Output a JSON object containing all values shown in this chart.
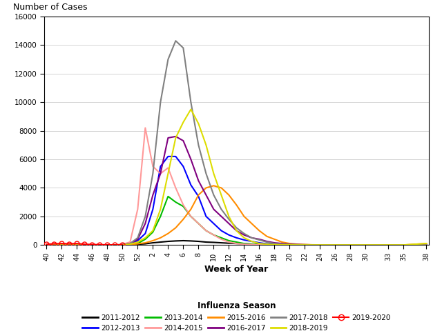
{
  "title_y": "Number of Cases",
  "xlabel": "Week of Year",
  "legend_title": "Influenza Season",
  "ylim": [
    0,
    16000
  ],
  "yticks": [
    0,
    2000,
    4000,
    6000,
    8000,
    10000,
    12000,
    14000,
    16000
  ],
  "x_tick_labels": [
    40,
    42,
    44,
    46,
    48,
    50,
    52,
    2,
    4,
    6,
    8,
    10,
    12,
    14,
    16,
    18,
    20,
    22,
    24,
    26,
    28,
    30,
    33,
    35,
    38
  ],
  "seasons": {
    "2011-2012": {
      "color": "#000000",
      "lw": 1.5,
      "marker": null,
      "data": [
        [
          40,
          0
        ],
        [
          41,
          0
        ],
        [
          42,
          0
        ],
        [
          43,
          0
        ],
        [
          44,
          0
        ],
        [
          45,
          0
        ],
        [
          46,
          0
        ],
        [
          47,
          0
        ],
        [
          48,
          0
        ],
        [
          49,
          0
        ],
        [
          50,
          10
        ],
        [
          51,
          20
        ],
        [
          52,
          50
        ],
        [
          1,
          80
        ],
        [
          2,
          150
        ],
        [
          3,
          200
        ],
        [
          4,
          250
        ],
        [
          5,
          280
        ],
        [
          6,
          300
        ],
        [
          7,
          280
        ],
        [
          8,
          250
        ],
        [
          9,
          200
        ],
        [
          10,
          180
        ],
        [
          11,
          150
        ],
        [
          12,
          120
        ],
        [
          13,
          100
        ],
        [
          14,
          80
        ],
        [
          15,
          60
        ],
        [
          16,
          40
        ],
        [
          17,
          30
        ],
        [
          18,
          20
        ],
        [
          19,
          15
        ],
        [
          20,
          10
        ],
        [
          21,
          5
        ],
        [
          22,
          3
        ],
        [
          23,
          2
        ],
        [
          24,
          1
        ],
        [
          25,
          0
        ],
        [
          26,
          0
        ],
        [
          27,
          0
        ],
        [
          28,
          0
        ],
        [
          29,
          0
        ],
        [
          30,
          0
        ],
        [
          33,
          0
        ],
        [
          35,
          0
        ],
        [
          38,
          0
        ]
      ]
    },
    "2012-2013": {
      "color": "#0000FF",
      "lw": 1.5,
      "marker": null,
      "data": [
        [
          40,
          0
        ],
        [
          41,
          0
        ],
        [
          42,
          0
        ],
        [
          43,
          0
        ],
        [
          44,
          0
        ],
        [
          45,
          0
        ],
        [
          46,
          0
        ],
        [
          47,
          0
        ],
        [
          48,
          0
        ],
        [
          49,
          0
        ],
        [
          50,
          10
        ],
        [
          51,
          50
        ],
        [
          52,
          300
        ],
        [
          1,
          800
        ],
        [
          2,
          2500
        ],
        [
          3,
          5500
        ],
        [
          4,
          6200
        ],
        [
          5,
          6200
        ],
        [
          6,
          5500
        ],
        [
          7,
          4200
        ],
        [
          8,
          3400
        ],
        [
          9,
          2000
        ],
        [
          10,
          1500
        ],
        [
          11,
          1000
        ],
        [
          12,
          700
        ],
        [
          13,
          500
        ],
        [
          14,
          350
        ],
        [
          15,
          250
        ],
        [
          16,
          150
        ],
        [
          17,
          80
        ],
        [
          18,
          50
        ],
        [
          19,
          30
        ],
        [
          20,
          20
        ],
        [
          21,
          10
        ],
        [
          22,
          5
        ],
        [
          23,
          0
        ],
        [
          24,
          0
        ],
        [
          25,
          0
        ],
        [
          26,
          0
        ],
        [
          27,
          0
        ],
        [
          28,
          0
        ],
        [
          29,
          0
        ],
        [
          30,
          0
        ],
        [
          33,
          0
        ],
        [
          35,
          0
        ],
        [
          38,
          0
        ]
      ]
    },
    "2013-2014": {
      "color": "#00BB00",
      "lw": 1.5,
      "marker": null,
      "data": [
        [
          40,
          0
        ],
        [
          41,
          0
        ],
        [
          42,
          0
        ],
        [
          43,
          0
        ],
        [
          44,
          0
        ],
        [
          45,
          0
        ],
        [
          46,
          0
        ],
        [
          47,
          0
        ],
        [
          48,
          0
        ],
        [
          49,
          0
        ],
        [
          50,
          5
        ],
        [
          51,
          20
        ],
        [
          52,
          100
        ],
        [
          1,
          400
        ],
        [
          2,
          900
        ],
        [
          3,
          2000
        ],
        [
          4,
          3400
        ],
        [
          5,
          3000
        ],
        [
          6,
          2700
        ],
        [
          7,
          2000
        ],
        [
          8,
          1500
        ],
        [
          9,
          1000
        ],
        [
          10,
          700
        ],
        [
          11,
          500
        ],
        [
          12,
          300
        ],
        [
          13,
          200
        ],
        [
          14,
          100
        ],
        [
          15,
          60
        ],
        [
          16,
          30
        ],
        [
          17,
          15
        ],
        [
          18,
          10
        ],
        [
          19,
          5
        ],
        [
          20,
          0
        ],
        [
          21,
          0
        ],
        [
          22,
          0
        ],
        [
          23,
          0
        ],
        [
          24,
          0
        ],
        [
          25,
          0
        ],
        [
          26,
          0
        ],
        [
          27,
          0
        ],
        [
          28,
          0
        ],
        [
          29,
          0
        ],
        [
          30,
          0
        ],
        [
          33,
          0
        ],
        [
          35,
          0
        ],
        [
          38,
          0
        ]
      ]
    },
    "2014-2015": {
      "color": "#FF9999",
      "lw": 1.5,
      "marker": null,
      "data": [
        [
          40,
          0
        ],
        [
          41,
          0
        ],
        [
          42,
          0
        ],
        [
          43,
          0
        ],
        [
          44,
          0
        ],
        [
          45,
          0
        ],
        [
          46,
          0
        ],
        [
          47,
          0
        ],
        [
          48,
          0
        ],
        [
          49,
          0
        ],
        [
          50,
          50
        ],
        [
          51,
          200
        ],
        [
          52,
          2500
        ],
        [
          1,
          8200
        ],
        [
          2,
          5500
        ],
        [
          3,
          5000
        ],
        [
          4,
          5400
        ],
        [
          5,
          4000
        ],
        [
          6,
          2800
        ],
        [
          7,
          2000
        ],
        [
          8,
          1500
        ],
        [
          9,
          1000
        ],
        [
          10,
          700
        ],
        [
          11,
          400
        ],
        [
          12,
          200
        ],
        [
          13,
          100
        ],
        [
          14,
          50
        ],
        [
          15,
          30
        ],
        [
          16,
          10
        ],
        [
          17,
          5
        ],
        [
          18,
          0
        ],
        [
          19,
          0
        ],
        [
          20,
          0
        ],
        [
          21,
          0
        ],
        [
          22,
          0
        ],
        [
          23,
          0
        ],
        [
          24,
          0
        ],
        [
          25,
          0
        ],
        [
          26,
          0
        ],
        [
          27,
          0
        ],
        [
          28,
          0
        ],
        [
          29,
          0
        ],
        [
          30,
          0
        ],
        [
          33,
          0
        ],
        [
          35,
          0
        ],
        [
          38,
          0
        ]
      ]
    },
    "2015-2016": {
      "color": "#FF8C00",
      "lw": 1.5,
      "marker": null,
      "data": [
        [
          40,
          0
        ],
        [
          41,
          0
        ],
        [
          42,
          0
        ],
        [
          43,
          0
        ],
        [
          44,
          0
        ],
        [
          45,
          0
        ],
        [
          46,
          0
        ],
        [
          47,
          0
        ],
        [
          48,
          0
        ],
        [
          49,
          0
        ],
        [
          50,
          10
        ],
        [
          51,
          30
        ],
        [
          52,
          80
        ],
        [
          1,
          150
        ],
        [
          2,
          300
        ],
        [
          3,
          500
        ],
        [
          4,
          800
        ],
        [
          5,
          1200
        ],
        [
          6,
          1800
        ],
        [
          7,
          2500
        ],
        [
          8,
          3500
        ],
        [
          9,
          4000
        ],
        [
          10,
          4150
        ],
        [
          11,
          4000
        ],
        [
          12,
          3500
        ],
        [
          13,
          2800
        ],
        [
          14,
          2000
        ],
        [
          15,
          1500
        ],
        [
          16,
          1000
        ],
        [
          17,
          600
        ],
        [
          18,
          400
        ],
        [
          19,
          200
        ],
        [
          20,
          100
        ],
        [
          21,
          50
        ],
        [
          22,
          30
        ],
        [
          23,
          10
        ],
        [
          24,
          5
        ],
        [
          25,
          0
        ],
        [
          26,
          0
        ],
        [
          27,
          0
        ],
        [
          28,
          0
        ],
        [
          29,
          0
        ],
        [
          30,
          0
        ],
        [
          33,
          0
        ],
        [
          35,
          0
        ],
        [
          38,
          100
        ]
      ]
    },
    "2016-2017": {
      "color": "#800080",
      "lw": 1.5,
      "marker": null,
      "data": [
        [
          40,
          0
        ],
        [
          41,
          0
        ],
        [
          42,
          0
        ],
        [
          43,
          0
        ],
        [
          44,
          0
        ],
        [
          45,
          0
        ],
        [
          46,
          0
        ],
        [
          47,
          0
        ],
        [
          48,
          0
        ],
        [
          49,
          0
        ],
        [
          50,
          20
        ],
        [
          51,
          100
        ],
        [
          52,
          400
        ],
        [
          1,
          1500
        ],
        [
          2,
          3500
        ],
        [
          3,
          5000
        ],
        [
          4,
          7500
        ],
        [
          5,
          7600
        ],
        [
          6,
          7300
        ],
        [
          7,
          6000
        ],
        [
          8,
          4500
        ],
        [
          9,
          3500
        ],
        [
          10,
          2500
        ],
        [
          11,
          2000
        ],
        [
          12,
          1500
        ],
        [
          13,
          1000
        ],
        [
          14,
          700
        ],
        [
          15,
          500
        ],
        [
          16,
          400
        ],
        [
          17,
          250
        ],
        [
          18,
          150
        ],
        [
          19,
          100
        ],
        [
          20,
          50
        ],
        [
          21,
          30
        ],
        [
          22,
          15
        ],
        [
          23,
          5
        ],
        [
          24,
          0
        ],
        [
          25,
          0
        ],
        [
          26,
          0
        ],
        [
          27,
          0
        ],
        [
          28,
          0
        ],
        [
          29,
          0
        ],
        [
          30,
          0
        ],
        [
          33,
          0
        ],
        [
          35,
          0
        ],
        [
          38,
          0
        ]
      ]
    },
    "2017-2018": {
      "color": "#808080",
      "lw": 1.5,
      "marker": null,
      "data": [
        [
          40,
          0
        ],
        [
          41,
          0
        ],
        [
          42,
          0
        ],
        [
          43,
          0
        ],
        [
          44,
          0
        ],
        [
          45,
          0
        ],
        [
          46,
          0
        ],
        [
          47,
          0
        ],
        [
          48,
          0
        ],
        [
          49,
          0
        ],
        [
          50,
          20
        ],
        [
          51,
          100
        ],
        [
          52,
          500
        ],
        [
          1,
          2000
        ],
        [
          2,
          5000
        ],
        [
          3,
          10000
        ],
        [
          4,
          13000
        ],
        [
          5,
          14300
        ],
        [
          6,
          13800
        ],
        [
          7,
          10000
        ],
        [
          8,
          7000
        ],
        [
          9,
          5000
        ],
        [
          10,
          3500
        ],
        [
          11,
          2500
        ],
        [
          12,
          1800
        ],
        [
          13,
          1200
        ],
        [
          14,
          800
        ],
        [
          15,
          500
        ],
        [
          16,
          350
        ],
        [
          17,
          200
        ],
        [
          18,
          100
        ],
        [
          19,
          50
        ],
        [
          20,
          30
        ],
        [
          21,
          15
        ],
        [
          22,
          5
        ],
        [
          23,
          0
        ],
        [
          24,
          0
        ],
        [
          25,
          0
        ],
        [
          26,
          0
        ],
        [
          27,
          0
        ],
        [
          28,
          0
        ],
        [
          29,
          0
        ],
        [
          30,
          0
        ],
        [
          33,
          0
        ],
        [
          35,
          0
        ],
        [
          38,
          0
        ]
      ]
    },
    "2018-2019": {
      "color": "#DDDD00",
      "lw": 1.5,
      "marker": null,
      "data": [
        [
          40,
          0
        ],
        [
          41,
          0
        ],
        [
          42,
          0
        ],
        [
          43,
          0
        ],
        [
          44,
          0
        ],
        [
          45,
          0
        ],
        [
          46,
          0
        ],
        [
          47,
          0
        ],
        [
          48,
          0
        ],
        [
          49,
          0
        ],
        [
          50,
          10
        ],
        [
          51,
          50
        ],
        [
          52,
          200
        ],
        [
          1,
          500
        ],
        [
          2,
          1000
        ],
        [
          3,
          2500
        ],
        [
          4,
          5000
        ],
        [
          5,
          7500
        ],
        [
          6,
          8600
        ],
        [
          7,
          9500
        ],
        [
          8,
          8500
        ],
        [
          9,
          7000
        ],
        [
          10,
          5000
        ],
        [
          11,
          3500
        ],
        [
          12,
          2000
        ],
        [
          13,
          1000
        ],
        [
          14,
          500
        ],
        [
          15,
          250
        ],
        [
          16,
          100
        ],
        [
          17,
          50
        ],
        [
          18,
          20
        ],
        [
          19,
          10
        ],
        [
          20,
          5
        ],
        [
          21,
          0
        ],
        [
          22,
          0
        ],
        [
          23,
          0
        ],
        [
          24,
          0
        ],
        [
          25,
          0
        ],
        [
          26,
          0
        ],
        [
          27,
          0
        ],
        [
          28,
          0
        ],
        [
          29,
          0
        ],
        [
          30,
          0
        ],
        [
          33,
          0
        ],
        [
          35,
          0
        ],
        [
          38,
          100
        ]
      ]
    },
    "2019-2020": {
      "color": "#FF0000",
      "lw": 1.5,
      "marker": "o",
      "data": [
        [
          40,
          50
        ],
        [
          41,
          80
        ],
        [
          42,
          100
        ],
        [
          43,
          80
        ],
        [
          44,
          100
        ],
        [
          45,
          50
        ],
        [
          46,
          30
        ],
        [
          47,
          20
        ],
        [
          48,
          10
        ],
        [
          49,
          5
        ],
        [
          50,
          5
        ]
      ]
    }
  },
  "background_color": "#FFFFFF",
  "grid_color": "#D3D3D3"
}
